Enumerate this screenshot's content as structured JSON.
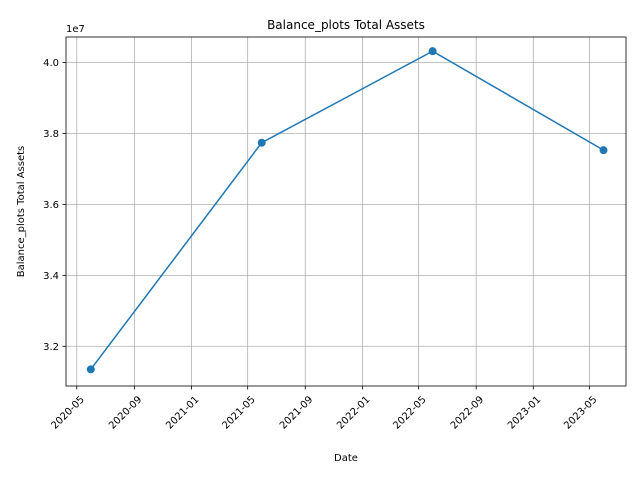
{
  "chart_data": {
    "type": "line",
    "title": "Balance_plots Total Assets",
    "xlabel": "Date",
    "ylabel": "Balance_plots Total Assets",
    "y_offset_label": "1e7",
    "x_ticks": [
      "2020-05",
      "2020-09",
      "2021-01",
      "2021-05",
      "2021-09",
      "2022-01",
      "2022-05",
      "2022-09",
      "2023-01",
      "2023-05"
    ],
    "y_ticks": [
      "3.2",
      "3.4",
      "3.6",
      "3.8",
      "4.0"
    ],
    "xlim": [
      "2020-04-08",
      "2023-07-18"
    ],
    "ylim": [
      30880000,
      40720000
    ],
    "x": [
      "2020-05-31",
      "2021-05-31",
      "2022-05-31",
      "2023-05-31"
    ],
    "values": [
      31350000,
      37740000,
      40320000,
      37530000
    ],
    "grid": true,
    "marker": "circle",
    "color": "#1f77b4"
  }
}
